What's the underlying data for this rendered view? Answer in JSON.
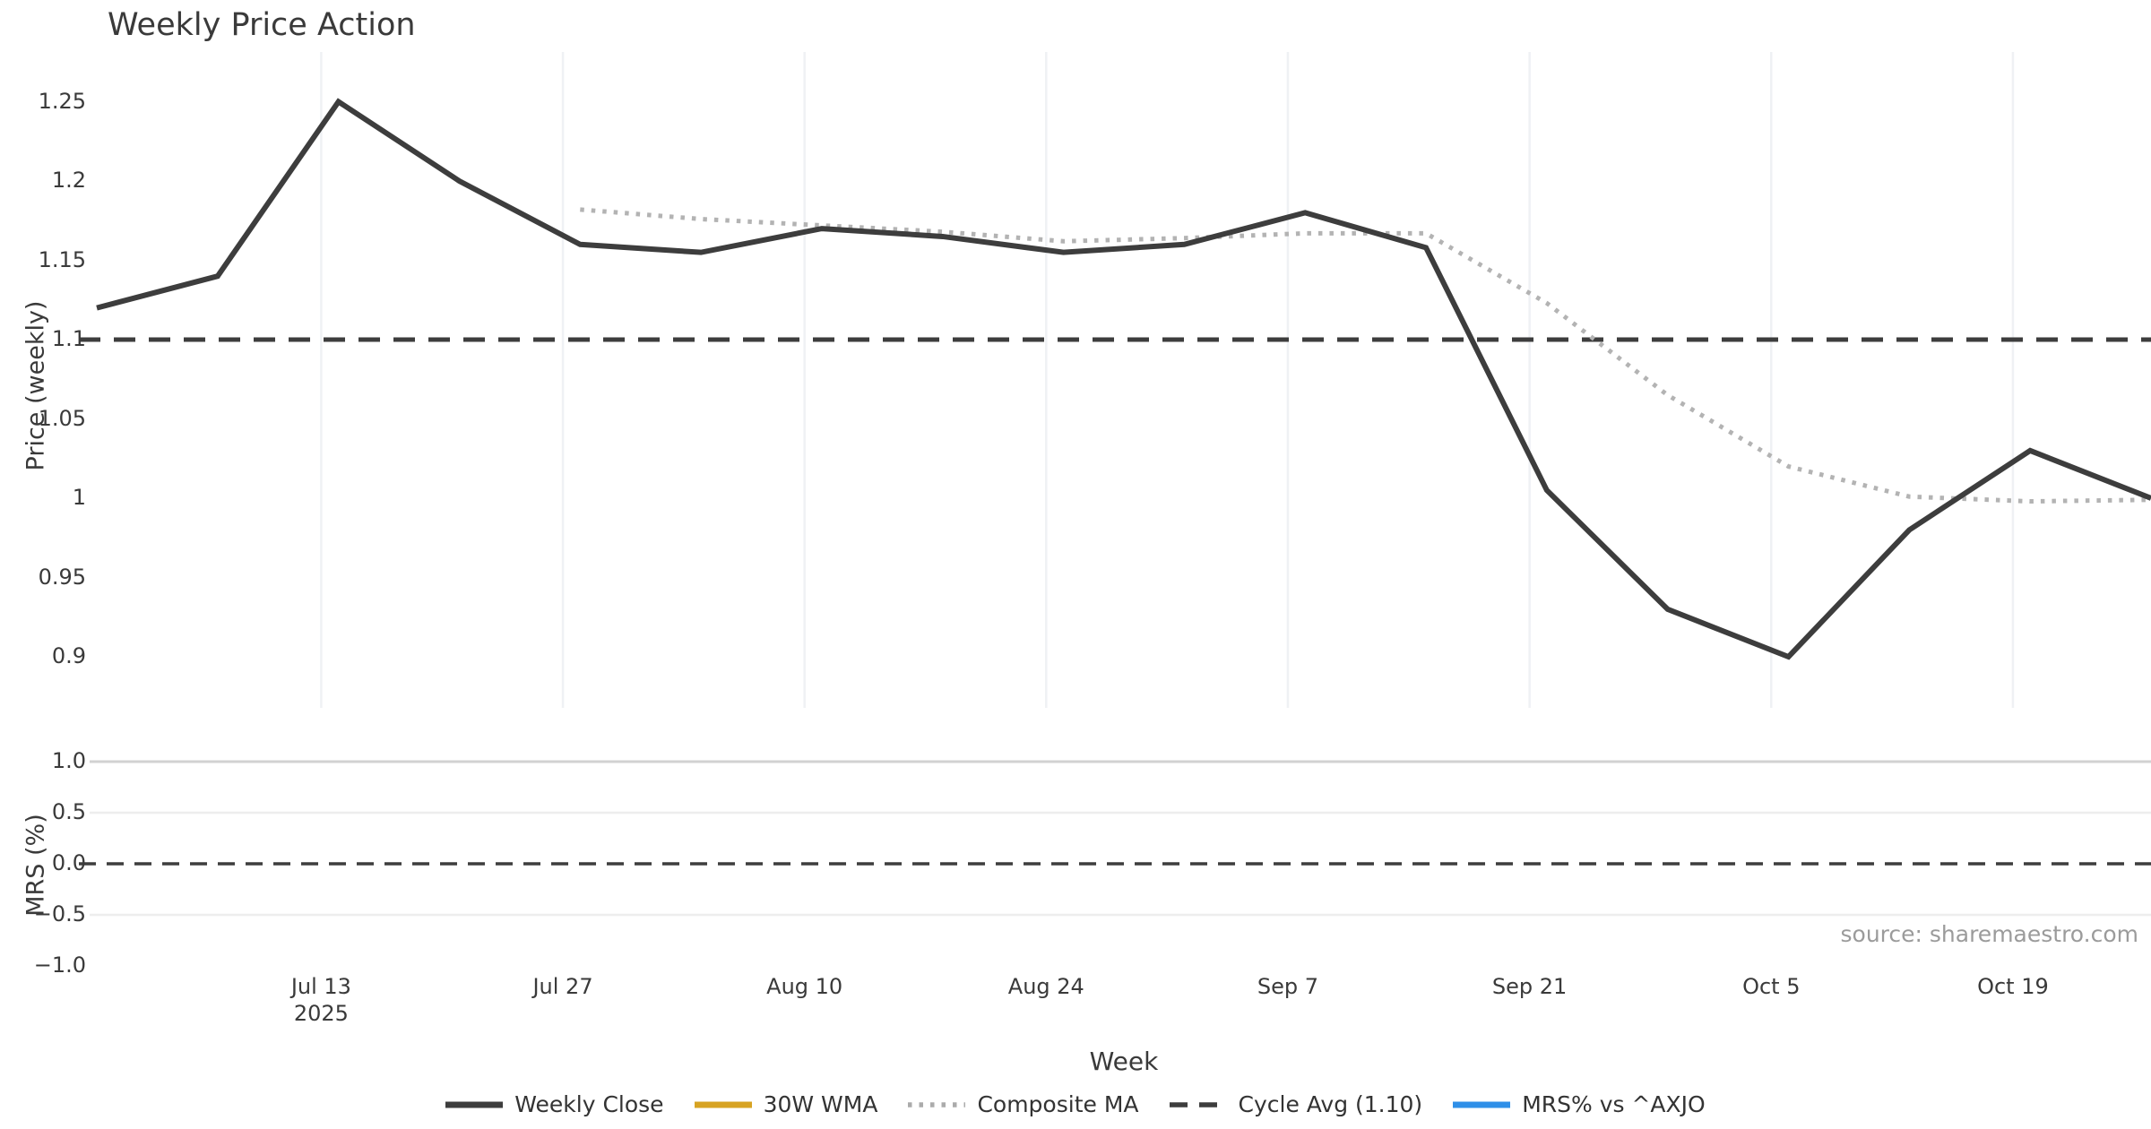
{
  "title": "Weekly Price Action",
  "source_text": "source: sharemaestro.com",
  "axes": {
    "price_label": "Price (weekly)",
    "mrs_label": "MRS (%)",
    "x_label": "Week",
    "price_ticks": [
      {
        "label": "1.25",
        "value": 1.25
      },
      {
        "label": "1.2",
        "value": 1.2
      },
      {
        "label": "1.15",
        "value": 1.15
      },
      {
        "label": "1.1",
        "value": 1.1
      },
      {
        "label": "1.05",
        "value": 1.05
      },
      {
        "label": "1",
        "value": 1.0
      },
      {
        "label": "0.95",
        "value": 0.95
      },
      {
        "label": "0.9",
        "value": 0.9
      }
    ],
    "mrs_ticks": [
      {
        "label": "1.0",
        "value": 1.0
      },
      {
        "label": "0.5",
        "value": 0.5
      },
      {
        "label": "0.0",
        "value": 0.0
      },
      {
        "label": "−0.5",
        "value": -0.5
      },
      {
        "label": "−1.0",
        "value": -1.0
      }
    ],
    "x_ticks": [
      {
        "label": "Jul 13",
        "sub": "2025",
        "week": 2
      },
      {
        "label": "Jul 27",
        "sub": "",
        "week": 4
      },
      {
        "label": "Aug 10",
        "sub": "",
        "week": 6
      },
      {
        "label": "Aug 24",
        "sub": "",
        "week": 8
      },
      {
        "label": "Sep 7",
        "sub": "",
        "week": 10
      },
      {
        "label": "Sep 21",
        "sub": "",
        "week": 12
      },
      {
        "label": "Oct 5",
        "sub": "",
        "week": 14
      },
      {
        "label": "Oct 19",
        "sub": "",
        "week": 16
      }
    ]
  },
  "colors": {
    "weekly_close": "#3d3d3d",
    "wma_30w": "#d7a322",
    "composite_ma": "#b3b3b3",
    "cycle_avg": "#3d3d3d",
    "mrs_line": "#2e8fe8",
    "grid_vertical": "#eff1f4",
    "grid_horizontal": "#ededed",
    "grid_horizontal_top": "#d2d2d2",
    "tick_text": "#3a3a3a",
    "source_text": "#9b9b9b"
  },
  "legend": [
    {
      "label": "Weekly Close",
      "color": "#3d3d3d",
      "style": "solid"
    },
    {
      "label": "30W WMA",
      "color": "#d7a322",
      "style": "solid"
    },
    {
      "label": "Composite MA",
      "color": "#ababab",
      "style": "dotted"
    },
    {
      "label": "Cycle Avg (1.10)",
      "color": "#3d3d3d",
      "style": "dashed"
    },
    {
      "label": "MRS% vs ^AXJO",
      "color": "#2e8fe8",
      "style": "solid"
    }
  ],
  "chart_data": [
    {
      "type": "line",
      "title": "Weekly Price Action",
      "xlabel": "Week",
      "ylabel": "Price (weekly)",
      "x": [
        "2025-06-30",
        "2025-07-07",
        "2025-07-14",
        "2025-07-21",
        "2025-07-28",
        "2025-08-04",
        "2025-08-11",
        "2025-08-18",
        "2025-08-25",
        "2025-09-01",
        "2025-09-08",
        "2025-09-15",
        "2025-09-22",
        "2025-09-29",
        "2025-10-06",
        "2025-10-13",
        "2025-10-20",
        "2025-10-27"
      ],
      "ylim": [
        0.868,
        1.282
      ],
      "grid": "vertical",
      "legend_position": "bottom",
      "series": [
        {
          "name": "Weekly Close",
          "style": "solid",
          "values": [
            1.12,
            1.14,
            1.25,
            1.2,
            1.16,
            1.155,
            1.17,
            1.165,
            1.155,
            1.16,
            1.18,
            1.158,
            1.005,
            0.93,
            0.9,
            0.98,
            1.03,
            1.0
          ]
        },
        {
          "name": "30W WMA",
          "style": "solid",
          "values": []
        },
        {
          "name": "Composite MA",
          "style": "dotted",
          "values": [
            null,
            null,
            null,
            null,
            1.182,
            1.176,
            1.172,
            1.168,
            1.162,
            1.164,
            1.167,
            1.167,
            1.123,
            1.065,
            1.02,
            1.001,
            0.998,
            0.999
          ]
        },
        {
          "name": "Cycle Avg (1.10)",
          "style": "dashed",
          "horizontal_value": 1.1
        }
      ]
    },
    {
      "type": "line",
      "xlabel": "Week",
      "ylabel": "MRS (%)",
      "x": [
        "2025-06-30",
        "2025-07-07",
        "2025-07-14",
        "2025-07-21",
        "2025-07-28",
        "2025-08-04",
        "2025-08-11",
        "2025-08-18",
        "2025-08-25",
        "2025-09-01",
        "2025-09-08",
        "2025-09-15",
        "2025-09-22",
        "2025-09-29",
        "2025-10-06",
        "2025-10-13",
        "2025-10-20",
        "2025-10-27"
      ],
      "ylim": [
        -1.06,
        1.06
      ],
      "grid": "horizontal",
      "series": [
        {
          "name": "MRS% vs ^AXJO",
          "style": "solid",
          "values": []
        },
        {
          "name": "Zero line",
          "style": "dashed",
          "horizontal_value": 0.0
        }
      ]
    }
  ]
}
